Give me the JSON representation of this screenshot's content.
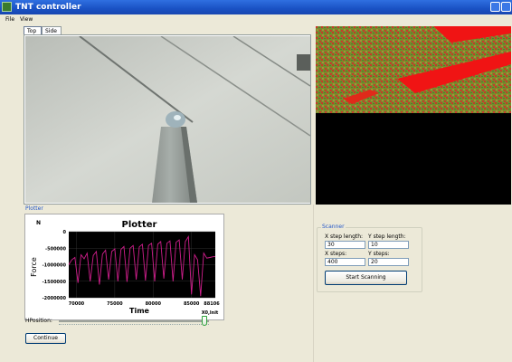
{
  "window": {
    "title": "TNT controller"
  },
  "menu": {
    "items": [
      "File",
      "View"
    ]
  },
  "tabs": [
    {
      "label": "Top"
    },
    {
      "label": "Side"
    }
  ],
  "plotter": {
    "section_label": "Plotter",
    "title": "Plotter",
    "corner_label": "N",
    "x_unit_label": "X0,lnit",
    "chart_data": {
      "type": "line",
      "title": "Plotter",
      "xlabel": "Time",
      "ylabel": "Force",
      "xlim": [
        69000,
        88106
      ],
      "ylim": [
        -2000000,
        0
      ],
      "x_ticks": [
        70000,
        75000,
        80000,
        85000,
        88106
      ],
      "y_ticks": [
        0,
        -500000,
        -1000000,
        -1500000,
        -2000000
      ],
      "series": [
        {
          "color": "#d01e8c",
          "x": [
            69000,
            69400,
            69800,
            70200,
            70600,
            71000,
            71400,
            71800,
            72200,
            72600,
            73000,
            73400,
            73800,
            74200,
            74600,
            75000,
            75400,
            75800,
            76200,
            76600,
            77000,
            77400,
            77800,
            78200,
            78600,
            79000,
            79400,
            79800,
            80200,
            80600,
            81000,
            81400,
            81800,
            82200,
            82600,
            83000,
            83400,
            83800,
            84200,
            84600,
            85000,
            85400,
            85800,
            86200,
            86600,
            87000,
            87400,
            87800,
            88106
          ],
          "y": [
            -1000000,
            -850000,
            -780000,
            -1550000,
            -700000,
            -820000,
            -650000,
            -1500000,
            -720000,
            -600000,
            -1600000,
            -680000,
            -560000,
            -1450000,
            -600000,
            -520000,
            -1500000,
            -540000,
            -450000,
            -1520000,
            -500000,
            -420000,
            -1450000,
            -460000,
            -380000,
            -1480000,
            -420000,
            -350000,
            -1500000,
            -380000,
            -300000,
            -1420000,
            -350000,
            -280000,
            -1500000,
            -320000,
            -250000,
            -1450000,
            -300000,
            -150000,
            -1900000,
            -700000,
            -850000,
            -1950000,
            -650000,
            -800000,
            -780000,
            -760000,
            -750000
          ]
        }
      ]
    }
  },
  "hposition": {
    "label": "HPosition:",
    "value": 0.97
  },
  "buttons": {
    "continue": "Continue",
    "start_scanning": "Start Scanning"
  },
  "scanner": {
    "title": "Scanner",
    "x_step_length_label": "X step length:",
    "x_step_length": "30",
    "y_step_length_label": "Y step length:",
    "y_step_length": "10",
    "x_steps_label": "X steps:",
    "x_steps": "400",
    "y_steps_label": "Y steps:",
    "y_steps": "20"
  }
}
